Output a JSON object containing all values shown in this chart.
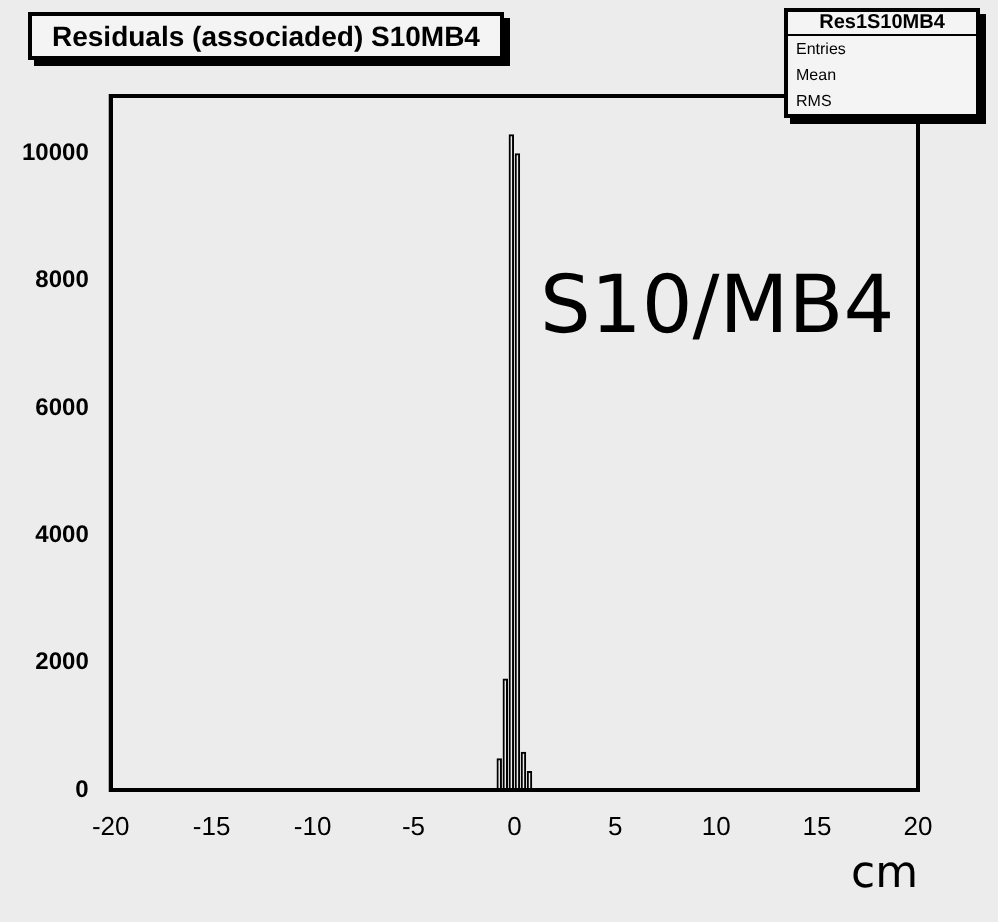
{
  "chart_data": {
    "type": "histogram",
    "title": "Residuals (associaded) S10MB4",
    "xlabel": "cm",
    "bins": [
      -0.9,
      -0.6,
      -0.3,
      0.0,
      0.3,
      0.6,
      0.9
    ],
    "values": [
      500,
      1750,
      10300,
      10000,
      600,
      300
    ],
    "color": "#000000",
    "xlim": [
      -20,
      20
    ],
    "xticks": [
      -20,
      -15,
      -10,
      -5,
      0,
      5,
      10,
      15,
      20
    ],
    "ylim": [
      0,
      10900
    ],
    "yticks": [
      0,
      2000,
      4000,
      6000,
      8000,
      10000
    ],
    "grid": false,
    "legend": false,
    "annotations": [
      "S10/MB4",
      "Res1S10MB4",
      "Entries",
      "Mean",
      "RMS"
    ]
  }
}
